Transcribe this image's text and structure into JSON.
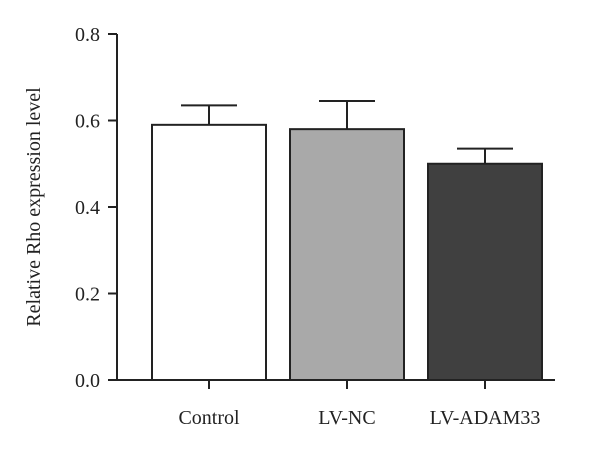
{
  "chart_data": {
    "type": "bar",
    "title": "",
    "xlabel": "",
    "ylabel": "Relative Rho expression level",
    "ylim": [
      0,
      0.8
    ],
    "yticks": [
      0.0,
      0.2,
      0.4,
      0.6,
      0.8
    ],
    "ytick_labels": [
      "0.0",
      "0.2",
      "0.4",
      "0.6",
      "0.8"
    ],
    "categories": [
      "Control",
      "LV-NC",
      "LV-ADAM33"
    ],
    "values": [
      0.59,
      0.58,
      0.5
    ],
    "error_upper": [
      0.045,
      0.065,
      0.035
    ],
    "bar_fill_colors": [
      "#ffffff",
      "#a9a9a9",
      "#404040"
    ],
    "bar_stroke_color": "#222222",
    "grid": false,
    "legend": "none"
  }
}
